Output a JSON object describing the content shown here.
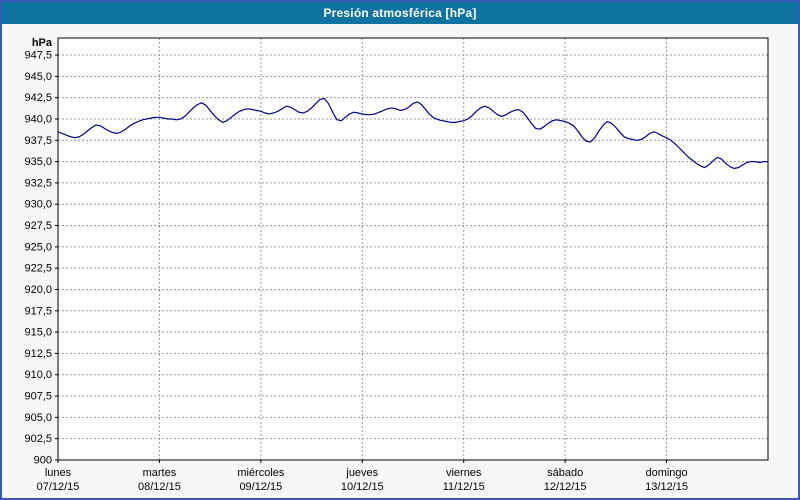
{
  "title_bar": {
    "title": "Presión atmosférica [hPa]"
  },
  "window": {
    "border_color": "#3958b5",
    "titlebar_bg": "#0e73a0",
    "titlebar_fg": "#ffffff",
    "bg_color": "#f7f7f7"
  },
  "chart_data": {
    "type": "line",
    "title": "Presión atmosférica [hPa]",
    "unit_label": "hPa",
    "ylim": [
      900,
      949.5
    ],
    "x_max": 168,
    "x_unit": "hours",
    "grid": true,
    "yticks": [
      {
        "value": 947.5,
        "label": "947,5"
      },
      {
        "value": 945.0,
        "label": "945,0"
      },
      {
        "value": 942.5,
        "label": "942,5"
      },
      {
        "value": 940.0,
        "label": "940,0"
      },
      {
        "value": 937.5,
        "label": "937,5"
      },
      {
        "value": 935.0,
        "label": "935,0"
      },
      {
        "value": 932.5,
        "label": "932,5"
      },
      {
        "value": 930.0,
        "label": "930,0"
      },
      {
        "value": 927.5,
        "label": "927,5"
      },
      {
        "value": 925.0,
        "label": "925,0"
      },
      {
        "value": 922.5,
        "label": "922,5"
      },
      {
        "value": 920.0,
        "label": "920,0"
      },
      {
        "value": 917.5,
        "label": "917,5"
      },
      {
        "value": 915.0,
        "label": "915,0"
      },
      {
        "value": 912.5,
        "label": "912,5"
      },
      {
        "value": 910.0,
        "label": "910,0"
      },
      {
        "value": 907.5,
        "label": "907,5"
      },
      {
        "value": 905.0,
        "label": "905,0"
      },
      {
        "value": 902.5,
        "label": "902,5"
      },
      {
        "value": 900.0,
        "label": "900"
      }
    ],
    "days": [
      {
        "name": "lunes",
        "date": "07/12/15"
      },
      {
        "name": "martes",
        "date": "08/12/15"
      },
      {
        "name": "miércoles",
        "date": "09/12/15"
      },
      {
        "name": "jueves",
        "date": "10/12/15"
      },
      {
        "name": "viernes",
        "date": "11/12/15"
      },
      {
        "name": "sábado",
        "date": "12/12/15"
      },
      {
        "name": "domingo",
        "date": "13/12/15"
      }
    ],
    "series": [
      {
        "name": "Presión atmosférica",
        "values": [
          938.5,
          938.3,
          938.1,
          937.9,
          937.8,
          937.9,
          938.2,
          938.6,
          939.0,
          939.3,
          939.2,
          938.9,
          938.6,
          938.4,
          938.3,
          938.5,
          938.8,
          939.2,
          939.5,
          939.7,
          939.9,
          940.0,
          940.1,
          940.2,
          940.2,
          940.1,
          940.0,
          940.0,
          939.9,
          940.0,
          940.3,
          940.8,
          941.3,
          941.7,
          941.9,
          941.6,
          941.0,
          940.4,
          939.9,
          939.6,
          939.8,
          940.2,
          940.6,
          940.9,
          941.1,
          941.2,
          941.1,
          941.0,
          940.9,
          940.7,
          940.6,
          940.7,
          940.9,
          941.2,
          941.5,
          941.4,
          941.1,
          940.8,
          940.7,
          940.9,
          941.3,
          941.8,
          942.3,
          942.4,
          941.8,
          940.8,
          939.9,
          939.8,
          940.2,
          940.6,
          940.8,
          940.7,
          940.6,
          940.5,
          940.5,
          940.6,
          940.8,
          941.0,
          941.2,
          941.3,
          941.2,
          941.0,
          941.1,
          941.4,
          941.8,
          942.0,
          941.7,
          941.1,
          940.5,
          940.1,
          939.9,
          939.8,
          939.7,
          939.6,
          939.6,
          939.7,
          939.8,
          940.0,
          940.4,
          940.9,
          941.3,
          941.5,
          941.3,
          940.9,
          940.5,
          940.3,
          940.5,
          940.8,
          941.0,
          941.1,
          940.8,
          940.2,
          939.5,
          938.9,
          938.8,
          939.1,
          939.5,
          939.8,
          939.9,
          939.8,
          939.7,
          939.5,
          939.2,
          938.6,
          937.9,
          937.4,
          937.3,
          937.8,
          938.6,
          939.3,
          939.7,
          939.5,
          939.0,
          938.4,
          937.9,
          937.7,
          937.6,
          937.5,
          937.6,
          937.9,
          938.3,
          938.5,
          938.3,
          938.0,
          937.8,
          937.5,
          937.1,
          936.6,
          936.1,
          935.6,
          935.2,
          934.8,
          934.5,
          934.3,
          934.6,
          935.1,
          935.5,
          935.3,
          934.8,
          934.4,
          934.2,
          934.3,
          934.6,
          934.9,
          935.0,
          935.0,
          934.9,
          935.0,
          935.0
        ]
      }
    ],
    "colors": {
      "line": "#00008b",
      "grid": "#9a9a9a",
      "plot_bg": "#ffffff",
      "frame": "#000000"
    }
  }
}
